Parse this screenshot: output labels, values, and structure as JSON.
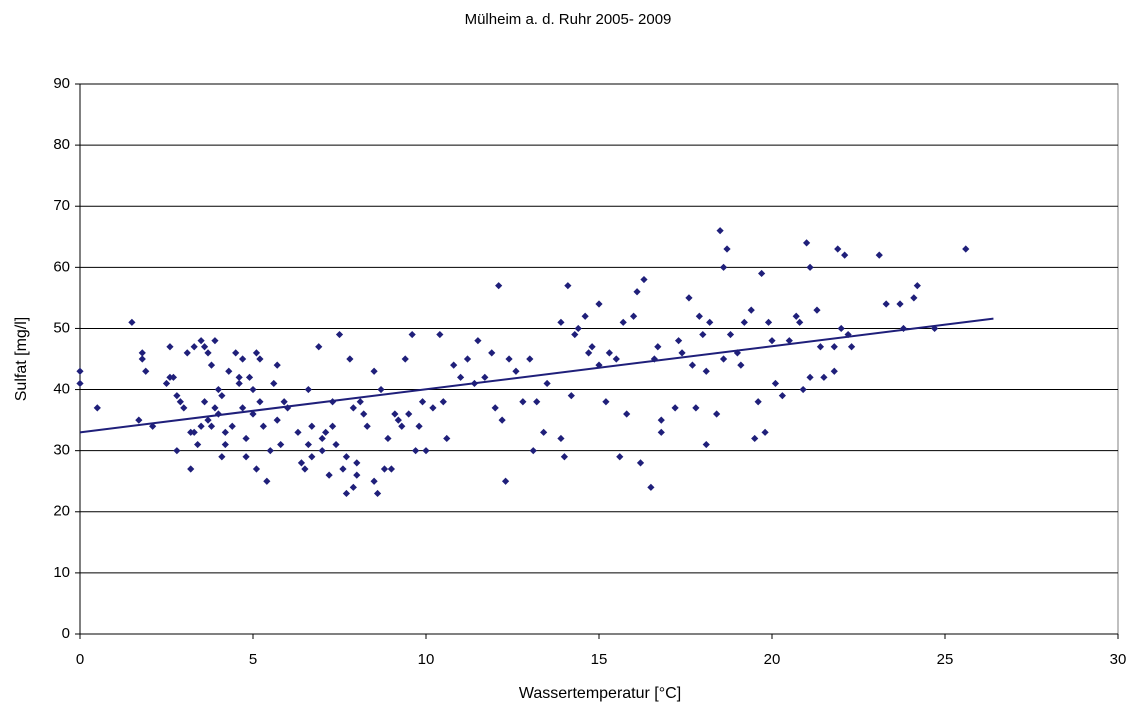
{
  "chart_data": {
    "type": "scatter",
    "title": "Mülheim a. d. Ruhr 2005- 2009",
    "x_label": "Wassertemperatur [°C]",
    "y_label": "Sulfat [mg/l]",
    "xlim": [
      0,
      30
    ],
    "xticks": [
      0,
      5,
      10,
      15,
      20,
      25,
      30
    ],
    "ylim": [
      0,
      90
    ],
    "yticks": [
      0,
      10,
      20,
      30,
      40,
      50,
      60,
      70,
      80,
      90
    ],
    "grid": true,
    "series": [
      {
        "color": "#1f1f7a",
        "mark": "diamond",
        "x": [
          0,
          0,
          0.5,
          1.5,
          1.7,
          1.8,
          1.8,
          1.9,
          2.1,
          2.5,
          2.6,
          2.6,
          2.7,
          2.8,
          2.8,
          2.9,
          3,
          3.1,
          3.2,
          3.2,
          3.3,
          3.3,
          3.4,
          3.5,
          3.5,
          3.6,
          3.6,
          3.7,
          3.7,
          3.8,
          3.8,
          3.9,
          3.9,
          4,
          4,
          4.1,
          4.1,
          4.2,
          4.2,
          4.3,
          4.4,
          4.5,
          4.6,
          4.6,
          4.7,
          4.7,
          4.8,
          4.8,
          4.9,
          5,
          5,
          5.1,
          5.1,
          5.2,
          5.2,
          5.3,
          5.4,
          5.5,
          5.6,
          5.7,
          5.7,
          5.8,
          5.9,
          6,
          6.3,
          6.4,
          6.5,
          6.6,
          6.6,
          6.7,
          6.7,
          6.9,
          7,
          7,
          7.1,
          7.2,
          7.3,
          7.3,
          7.4,
          7.5,
          7.6,
          7.7,
          7.7,
          7.8,
          7.9,
          7.9,
          8,
          8,
          8.1,
          8.2,
          8.3,
          8.5,
          8.5,
          8.6,
          8.7,
          8.8,
          8.9,
          9,
          9.1,
          9.2,
          9.3,
          9.4,
          9.5,
          9.6,
          9.7,
          9.8,
          9.9,
          10,
          10.2,
          10.4,
          10.5,
          10.6,
          10.8,
          11,
          11.2,
          11.4,
          11.5,
          11.7,
          11.9,
          12,
          12.1,
          12.2,
          12.3,
          12.4,
          12.6,
          12.8,
          13,
          13.1,
          13.2,
          13.4,
          13.5,
          13.9,
          13.9,
          14,
          14.1,
          14.2,
          14.3,
          14.4,
          14.6,
          14.7,
          14.8,
          15,
          15,
          15.2,
          15.3,
          15.5,
          15.6,
          15.7,
          15.8,
          16,
          16.1,
          16.2,
          16.3,
          16.5,
          16.6,
          16.7,
          16.8,
          16.8,
          17.2,
          17.3,
          17.4,
          17.6,
          17.7,
          17.8,
          17.9,
          18,
          18.1,
          18.1,
          18.2,
          18.4,
          18.5,
          18.6,
          18.6,
          18.7,
          18.8,
          19,
          19.1,
          19.2,
          19.4,
          19.5,
          19.6,
          19.7,
          19.8,
          19.9,
          20,
          20.1,
          20.3,
          20.5,
          20.7,
          20.8,
          20.9,
          21,
          21.1,
          21.1,
          21.3,
          21.4,
          21.5,
          21.8,
          21.8,
          21.9,
          22,
          22.1,
          22.2,
          22.3,
          23.1,
          23.3,
          23.7,
          23.8,
          24.1,
          24.2,
          24.7,
          25.6
        ],
        "values": [
          43,
          41,
          37,
          51,
          35,
          46,
          45,
          43,
          34,
          41,
          47,
          42,
          42,
          39,
          30,
          38,
          37,
          46,
          27,
          33,
          33,
          47,
          31,
          48,
          34,
          38,
          47,
          35,
          46,
          34,
          44,
          37,
          48,
          40,
          36,
          39,
          29,
          33,
          31,
          43,
          34,
          46,
          41,
          42,
          37,
          45,
          29,
          32,
          42,
          40,
          36,
          46,
          27,
          45,
          38,
          34,
          25,
          30,
          41,
          35,
          44,
          31,
          38,
          37,
          33,
          28,
          27,
          31,
          40,
          34,
          29,
          47,
          30,
          32,
          33,
          26,
          38,
          34,
          31,
          49,
          27,
          23,
          29,
          45,
          24,
          37,
          26,
          28,
          38,
          36,
          34,
          43,
          25,
          23,
          40,
          27,
          32,
          27,
          36,
          35,
          34,
          45,
          36,
          49,
          30,
          34,
          38,
          30,
          37,
          49,
          38,
          32,
          44,
          42,
          45,
          41,
          48,
          42,
          46,
          37,
          57,
          35,
          25,
          45,
          43,
          38,
          45,
          30,
          38,
          33,
          41,
          32,
          51,
          29,
          57,
          39,
          49,
          50,
          52,
          46,
          47,
          44,
          54,
          38,
          46,
          45,
          29,
          51,
          36,
          52,
          56,
          28,
          58,
          24,
          45,
          47,
          33,
          35,
          37,
          48,
          46,
          55,
          44,
          37,
          52,
          49,
          43,
          31,
          51,
          36,
          66,
          60,
          45,
          63,
          49,
          46,
          44,
          51,
          53,
          32,
          38,
          59,
          33,
          51,
          48,
          41,
          39,
          48,
          52,
          51,
          40,
          64,
          60,
          42,
          53,
          47,
          42,
          47,
          43,
          63,
          50,
          62,
          49,
          47,
          62,
          54,
          54,
          50,
          55,
          57,
          50,
          63
        ]
      },
      {
        "color": "#1f1f7a",
        "mark": "line",
        "x": [
          0,
          26.4
        ],
        "values": [
          33,
          51.6
        ]
      }
    ]
  }
}
